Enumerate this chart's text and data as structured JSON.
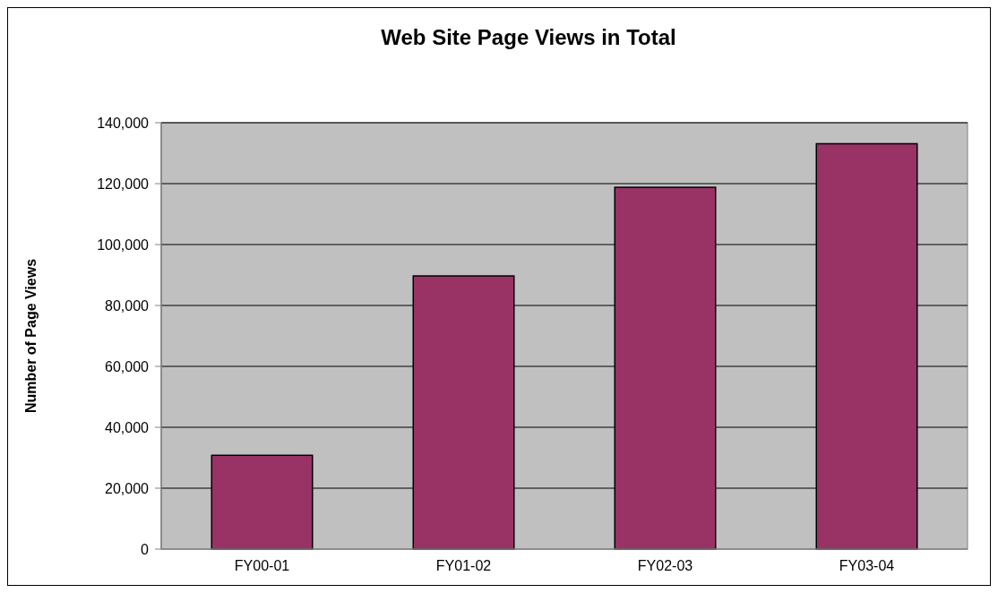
{
  "chart_data": {
    "type": "bar",
    "title": "Web Site Page Views in Total",
    "ylabel": "Number of Page Views",
    "categories": [
      "FY00-01",
      "FY01-02",
      "FY02-03",
      "FY03-04"
    ],
    "values": [
      30800,
      89700,
      118800,
      133100
    ],
    "color": "#993366",
    "ylim": [
      0,
      140000
    ],
    "yticks": [
      {
        "value": 0,
        "label": "0"
      },
      {
        "value": 20000,
        "label": "20,000"
      },
      {
        "value": 40000,
        "label": "40,000"
      },
      {
        "value": 60000,
        "label": "60,000"
      },
      {
        "value": 80000,
        "label": "80,000"
      },
      {
        "value": 100000,
        "label": "100,000"
      },
      {
        "value": 120000,
        "label": "120,000"
      },
      {
        "value": 140000,
        "label": "140,000"
      }
    ],
    "grid": "y"
  }
}
